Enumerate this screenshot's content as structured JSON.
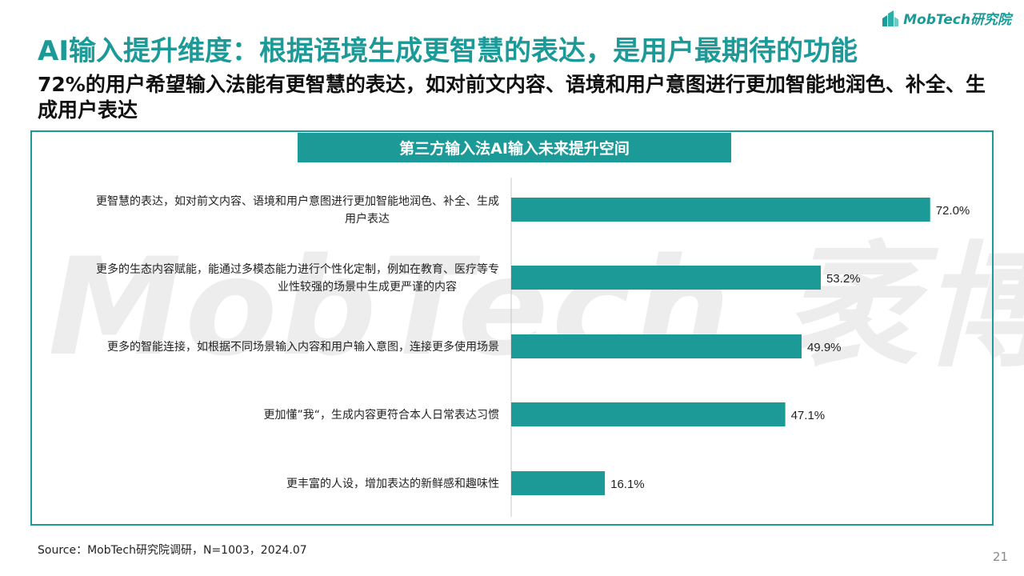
{
  "logo": {
    "text": "MobTech研究院"
  },
  "watermark": "MobTech 袤博",
  "title": "AI输入提升维度：根据语境生成更智慧的表达，是用户最期待的功能",
  "subtitle": "72%的用户希望输入法能有更智慧的表达，如对前文内容、语境和用户意图进行更加智能地润色、补全、生成用户表达",
  "chart_data": {
    "type": "bar",
    "orientation": "horizontal",
    "title": "第三方输入法AI输入未来提升空间",
    "categories": [
      [
        "更智慧的表达，如对前文内容、语境和用户意图进行更加智能地润色、补全、生成",
        "用户表达"
      ],
      [
        "更多的生态内容赋能，能通过多模态能力进行个性化定制，例如在教育、医疗等专",
        "业性较强的场景中生成更严谨的内容"
      ],
      [
        "更多的智能连接，如根据不同场景输入内容和用户输入意图，连接更多使用场景"
      ],
      [
        "更加懂”我“，生成内容更符合本人日常表达习惯"
      ],
      [
        "更丰富的人设，增加表达的新鲜感和趣味性"
      ]
    ],
    "values": [
      72.0,
      53.2,
      49.9,
      47.1,
      16.1
    ],
    "value_labels": [
      "72.0%",
      "53.2%",
      "49.9%",
      "47.1%",
      "16.1%"
    ],
    "unit": "%",
    "xlim": [
      0,
      73
    ],
    "bar_color": "#1c9a98",
    "grid": false
  },
  "source": "Source：MobTech研究院调研，N=1003，2024.07",
  "page_number": "21"
}
